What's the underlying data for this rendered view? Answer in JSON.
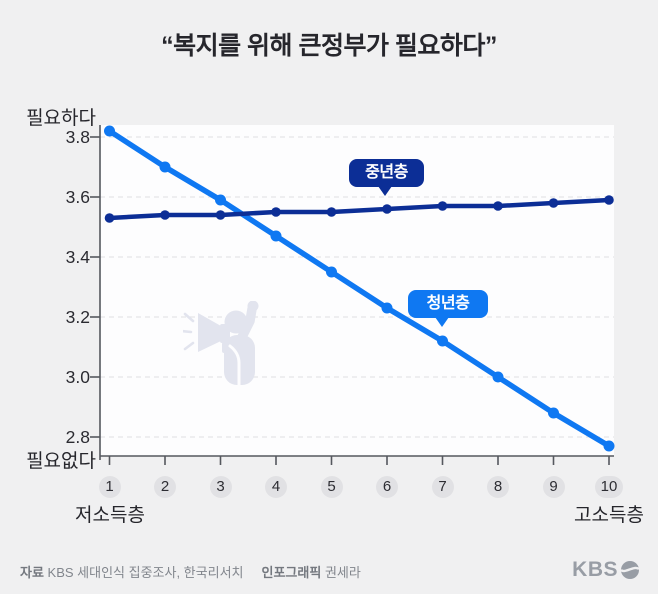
{
  "title": "“복지를 위해 큰정부가 필요하다”",
  "axis": {
    "top_label": "필요하다",
    "bottom_label": "필요없다",
    "x_left_label": "저소득층",
    "x_right_label": "고소득층"
  },
  "series_labels": {
    "middle": "중년층",
    "youth": "청년층"
  },
  "footer": {
    "source_label": "자료",
    "source_text": "KBS 세대인식 집중조사, 한국리서치",
    "credit_label": "인포그래픽",
    "credit_text": "권세라",
    "logo_text": "KBS"
  },
  "colors": {
    "background": "#f0f0f1",
    "plot_bg": "#fdfdfe",
    "youth": "#0f78f2",
    "middle": "#0c2e96",
    "grid": "#e5e5e8",
    "axis": "#55585e",
    "badge_bg": "#e1e1e4",
    "text_dark": "#26262c",
    "footer_gray": "#82868d",
    "logo_gray": "#989da5",
    "watermark": "#e2e4ee"
  },
  "chart_data": {
    "type": "line",
    "title": "“복지를 위해 큰정부가 필요하다”",
    "x": [
      1,
      2,
      3,
      4,
      5,
      6,
      7,
      8,
      9,
      10
    ],
    "x_axis_note": "1 = 저소득층, 10 = 고소득층",
    "series": [
      {
        "name": "청년층",
        "color_key": "youth",
        "values": [
          3.82,
          3.7,
          3.59,
          3.47,
          3.35,
          3.23,
          3.12,
          3.0,
          2.88,
          2.77
        ]
      },
      {
        "name": "중년층",
        "color_key": "middle",
        "values": [
          3.53,
          3.54,
          3.54,
          3.55,
          3.55,
          3.56,
          3.57,
          3.57,
          3.58,
          3.59
        ]
      }
    ],
    "yticks": [
      3.8,
      3.6,
      3.4,
      3.2,
      3.0,
      2.8
    ],
    "ylim": [
      2.73,
      3.84
    ],
    "ylabel_top": "필요하다 (4)",
    "ylabel_bottom": "필요없다 (1)",
    "grid": true,
    "legend_position": "inline-callouts"
  }
}
